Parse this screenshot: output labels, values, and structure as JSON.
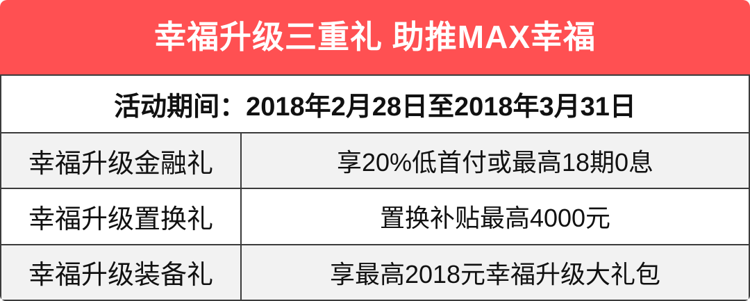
{
  "poster": {
    "title": "幸福升级三重礼 助推MAX幸福",
    "period": "活动期间：2018年2月28日至2018年3月31日",
    "rows": [
      {
        "label": "幸福升级金融礼",
        "value": "享20%低首付或最高18期0息"
      },
      {
        "label": "幸福升级置换礼",
        "value": "置换补贴最高4000元"
      },
      {
        "label": "幸福升级装备礼",
        "value": "享最高2018元幸福升级大礼包"
      }
    ],
    "colors": {
      "banner_bg": "#ff5052",
      "banner_text": "#ffffff",
      "border": "#3b3b3b",
      "row_alt_bg": "#f2f2f2",
      "row_bg": "#ffffff",
      "text": "#111111"
    }
  }
}
